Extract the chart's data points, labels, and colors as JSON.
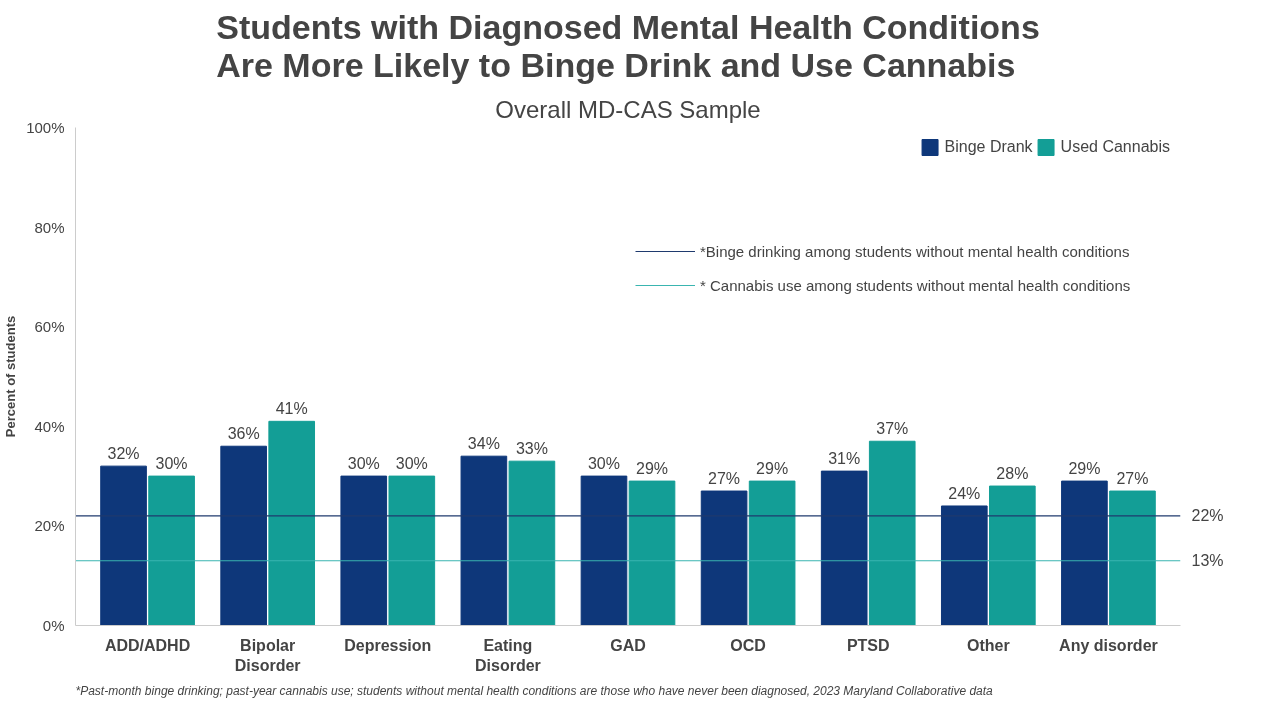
{
  "chart_data": {
    "type": "bar",
    "title": "Students with Diagnosed Mental Health Conditions\nAre More Likely to Binge Drink and Use Cannabis",
    "subtitle": "Overall MD-CAS Sample",
    "ylabel": "Percent of students",
    "categories": [
      "ADD/ADHD",
      "Bipolar\nDisorder",
      "Depression",
      "Eating\nDisorder",
      "GAD",
      "OCD",
      "PTSD",
      "Other",
      "Any disorder"
    ],
    "series": [
      {
        "name": "Binge Drank",
        "color": "#0e377a",
        "values": [
          32,
          36,
          30,
          34,
          30,
          27,
          31,
          24,
          29
        ],
        "value_labels": [
          "32%",
          "36%",
          "30%",
          "34%",
          "30%",
          "27%",
          "31%",
          "24%",
          "29%"
        ]
      },
      {
        "name": "Used Cannabis",
        "color": "#139e96",
        "values": [
          30,
          41,
          30,
          33,
          29,
          29,
          37,
          28,
          27
        ],
        "value_labels": [
          "30%",
          "41%",
          "30%",
          "33%",
          "29%",
          "29%",
          "37%",
          "28%",
          "27%"
        ]
      }
    ],
    "ylim": [
      0,
      100
    ],
    "yticks": [
      {
        "value": 0,
        "label": "0%"
      },
      {
        "value": 20,
        "label": "20%"
      },
      {
        "value": 40,
        "label": "40%"
      },
      {
        "value": 60,
        "label": "60%"
      },
      {
        "value": 80,
        "label": "80%"
      },
      {
        "value": 100,
        "label": "100%"
      }
    ],
    "grid": false,
    "legend": "top right",
    "ref_lines": [
      {
        "axis": "y",
        "value": 22,
        "label": "22%",
        "color": "#1f3a6e"
      },
      {
        "axis": "y",
        "value": 13,
        "label": "13%",
        "color": "#3ab5b0"
      }
    ],
    "annotations": [
      "*Past-month binge drinking; past-year cannabis use; students without mental health conditions are those who have never been diagnosed, 2023 Maryland Collaborative data",
      "*Binge drinking among students without mental health conditions",
      "* Cannabis use among students without mental health conditions"
    ]
  }
}
